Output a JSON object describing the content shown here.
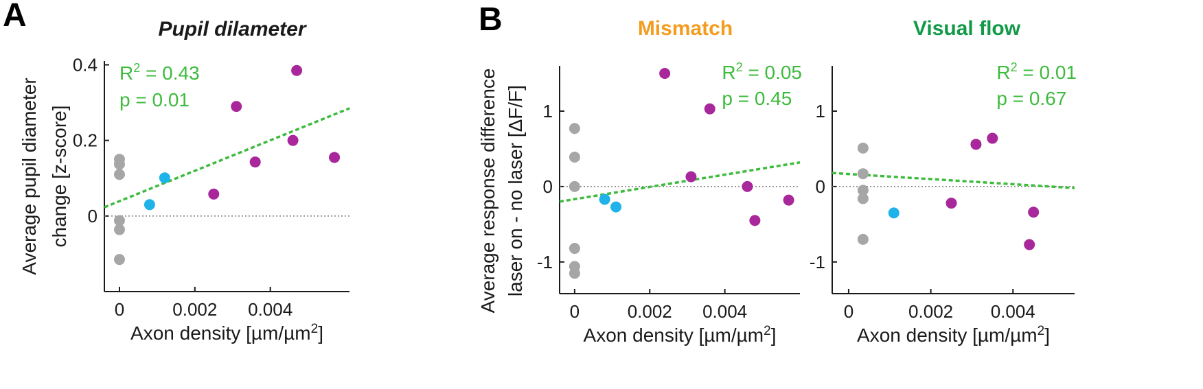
{
  "panel_letters": {
    "a": "A",
    "b": "B"
  },
  "colors": {
    "gray": "#a6a6a6",
    "blue": "#1fb3ea",
    "magenta": "#a8279a",
    "fit": "#3dbb3d",
    "title_pupil": "#1a1a1a",
    "title_mismatch": "#f39c1e",
    "title_visual": "#129a48"
  },
  "chart_data": [
    {
      "type": "scatter",
      "title": "Pupil dilameter",
      "xlabel": "Axon density [µm/µm²]",
      "ylabel": [
        "Average pupil diameter",
        "change [z-score]"
      ],
      "xlim": [
        -0.0004,
        0.0061
      ],
      "ylim": [
        -0.2,
        0.41
      ],
      "xticks": [
        0,
        0.002,
        0.004
      ],
      "xtick_labels": [
        "0",
        "0.002",
        "0.004"
      ],
      "yticks": [
        0,
        0.2,
        0.4
      ],
      "ytick_labels": [
        "0",
        "0.2",
        "0.4"
      ],
      "zero_line": true,
      "series": [
        {
          "color": "gray",
          "points": [
            [
              0,
              0.15
            ],
            [
              0,
              0.137
            ],
            [
              0,
              0.11
            ],
            [
              0,
              -0.012
            ],
            [
              0,
              -0.036
            ],
            [
              0,
              -0.115
            ]
          ]
        },
        {
          "color": "blue",
          "points": [
            [
              0.0008,
              0.03
            ],
            [
              0.0012,
              0.101
            ]
          ]
        },
        {
          "color": "magenta",
          "points": [
            [
              0.0025,
              0.058
            ],
            [
              0.0031,
              0.29
            ],
            [
              0.0036,
              0.143
            ],
            [
              0.0046,
              0.2
            ],
            [
              0.0047,
              0.385
            ],
            [
              0.0057,
              0.155
            ]
          ]
        }
      ],
      "fit_line": [
        [
          -0.0004,
          0.023
        ],
        [
          0.0061,
          0.285
        ]
      ],
      "stats": {
        "r2_prefix": "R",
        "r2_sup": "2",
        "r2_value": " = 0.43",
        "p_text": "p = 0.01"
      }
    },
    {
      "type": "scatter",
      "title": "Mismatch",
      "xlabel": "Axon density [µm/µm²]",
      "ylabel": [
        "Average response difference",
        "laser on - no laser [ΔF/F]"
      ],
      "xlim": [
        -0.0004,
        0.006
      ],
      "ylim": [
        -1.42,
        1.6
      ],
      "xticks": [
        0,
        0.002,
        0.004
      ],
      "xtick_labels": [
        "0",
        "0.002",
        "0.004"
      ],
      "yticks": [
        -1,
        0,
        1
      ],
      "ytick_labels": [
        "-1",
        "0",
        "1"
      ],
      "zero_line": true,
      "series": [
        {
          "color": "gray",
          "points": [
            [
              0,
              0.77
            ],
            [
              0,
              0.39
            ],
            [
              0,
              0.0
            ],
            [
              0,
              -0.82
            ],
            [
              0,
              -1.06
            ],
            [
              0,
              -1.15
            ]
          ]
        },
        {
          "color": "blue",
          "points": [
            [
              0.0008,
              -0.17
            ],
            [
              0.0011,
              -0.27
            ]
          ]
        },
        {
          "color": "magenta",
          "points": [
            [
              0.0024,
              1.5
            ],
            [
              0.0031,
              0.13
            ],
            [
              0.0036,
              1.03
            ],
            [
              0.0046,
              0.0
            ],
            [
              0.0048,
              -0.45
            ],
            [
              0.0057,
              -0.18
            ]
          ]
        }
      ],
      "fit_line": [
        [
          -0.0004,
          -0.2
        ],
        [
          0.006,
          0.32
        ]
      ],
      "stats": {
        "r2_prefix": "R",
        "r2_sup": "2",
        "r2_value": " = 0.05",
        "p_text": "p = 0.45"
      }
    },
    {
      "type": "scatter",
      "title": "Visual flow",
      "xlabel": "Axon density [µm/µm²]",
      "ylabel": [],
      "xlim": [
        -0.0004,
        0.0055
      ],
      "ylim": [
        -1.42,
        1.6
      ],
      "xticks": [
        0,
        0.002,
        0.004
      ],
      "xtick_labels": [
        "0",
        "0.002",
        "0.004"
      ],
      "yticks": [
        -1,
        0,
        1
      ],
      "ytick_labels": [
        "-1",
        "0",
        "1"
      ],
      "zero_line": true,
      "series": [
        {
          "color": "gray",
          "points": [
            [
              0.00035,
              0.51
            ],
            [
              0.00035,
              0.17
            ],
            [
              0.00035,
              -0.05
            ],
            [
              0.00035,
              -0.16
            ],
            [
              0.00035,
              -0.7
            ]
          ]
        },
        {
          "color": "blue",
          "points": [
            [
              0.0011,
              -0.35
            ]
          ]
        },
        {
          "color": "magenta",
          "points": [
            [
              0.0025,
              -0.22
            ],
            [
              0.0031,
              0.56
            ],
            [
              0.0035,
              0.64
            ],
            [
              0.0044,
              -0.77
            ],
            [
              0.0045,
              -0.34
            ]
          ]
        }
      ],
      "fit_line": [
        [
          -0.0004,
          0.18
        ],
        [
          0.0055,
          -0.02
        ]
      ],
      "stats": {
        "r2_prefix": "R",
        "r2_sup": "2",
        "r2_value": " = 0.01",
        "p_text": "p = 0.67"
      }
    }
  ]
}
